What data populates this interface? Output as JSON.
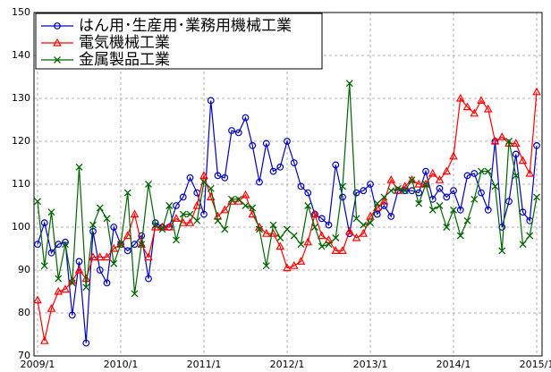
{
  "chart_data": {
    "type": "line",
    "categories": [
      "2009/1",
      null,
      null,
      null,
      null,
      null,
      null,
      null,
      null,
      null,
      null,
      null,
      "2010/1",
      null,
      null,
      null,
      null,
      null,
      null,
      null,
      null,
      null,
      null,
      null,
      "2011/1",
      null,
      null,
      null,
      null,
      null,
      null,
      null,
      null,
      null,
      null,
      null,
      "2012/1",
      null,
      null,
      null,
      null,
      null,
      null,
      null,
      null,
      null,
      null,
      null,
      "2013/1",
      null,
      null,
      null,
      null,
      null,
      null,
      null,
      null,
      null,
      null,
      null,
      "2014/1",
      null,
      null,
      null,
      null,
      null,
      null,
      null,
      null,
      null,
      null,
      null,
      "2015/1"
    ],
    "ylim": [
      70,
      150
    ],
    "yticks": [
      70,
      80,
      90,
      100,
      110,
      120,
      130,
      140,
      150
    ],
    "grid": true,
    "series": [
      {
        "name": "はん用･生産用･業務用機械工業",
        "color": "#0000c0",
        "marker": "circle",
        "values": [
          96,
          101,
          94,
          96,
          96.5,
          79.5,
          92,
          73,
          99,
          90,
          87,
          100,
          96,
          94.5,
          96,
          98,
          88,
          101,
          100,
          100,
          105,
          107,
          111.5,
          108,
          103,
          129.5,
          112,
          111.5,
          122.5,
          122,
          125.5,
          119,
          110.5,
          119.5,
          113,
          114,
          120,
          115,
          109.5,
          108,
          103,
          102,
          100.5,
          114.5,
          107,
          98.5,
          108,
          108.5,
          110,
          103,
          105,
          102.5,
          108.5,
          108.5,
          108.5,
          108,
          113,
          106.5,
          109,
          107,
          108.5,
          104,
          112,
          112.5,
          108,
          104,
          120,
          100,
          106,
          117,
          103.5,
          101.5,
          119
        ]
      },
      {
        "name": "電気機械工業",
        "color": "#ff0000",
        "marker": "triangle",
        "values": [
          83,
          73.5,
          81,
          85,
          85.5,
          87.5,
          90,
          88,
          93,
          93,
          93,
          95,
          96,
          98,
          103,
          96,
          93,
          100,
          100,
          100,
          102,
          101,
          101,
          105,
          112,
          107,
          102.5,
          104,
          106,
          106,
          107.5,
          103,
          100,
          98.5,
          98.5,
          95.5,
          90.5,
          91,
          92,
          96.5,
          103,
          98,
          97,
          94.5,
          94.5,
          99,
          97.5,
          98.5,
          102.5,
          104.5,
          106,
          111,
          108.5,
          109.5,
          111,
          110,
          110,
          112.5,
          111,
          113,
          116.5,
          130,
          128,
          126.5,
          129.5,
          127.5,
          120,
          121,
          119.5,
          119.5,
          115.5,
          112.5,
          131.5
        ]
      },
      {
        "name": "金属製品工業",
        "color": "#006400",
        "marker": "x",
        "values": [
          106,
          91,
          103.5,
          88,
          96,
          87,
          114,
          86,
          100.5,
          104.5,
          102,
          91.5,
          96,
          108,
          84.5,
          96,
          110,
          100.5,
          99.5,
          105,
          97,
          103,
          103,
          101.5,
          110.5,
          109,
          101.5,
          99.5,
          106.5,
          106.5,
          105,
          104.5,
          99.5,
          91,
          100.5,
          97.5,
          99.5,
          98,
          96,
          105,
          100,
          95.5,
          96,
          97.5,
          109.5,
          133.5,
          102,
          100.5,
          101,
          105.5,
          107,
          108.5,
          109,
          108.5,
          111,
          105.5,
          110,
          104,
          105,
          100,
          104,
          98,
          101.5,
          106.5,
          113,
          113,
          109.5,
          94.5,
          120,
          112,
          96,
          98,
          107
        ]
      }
    ]
  }
}
